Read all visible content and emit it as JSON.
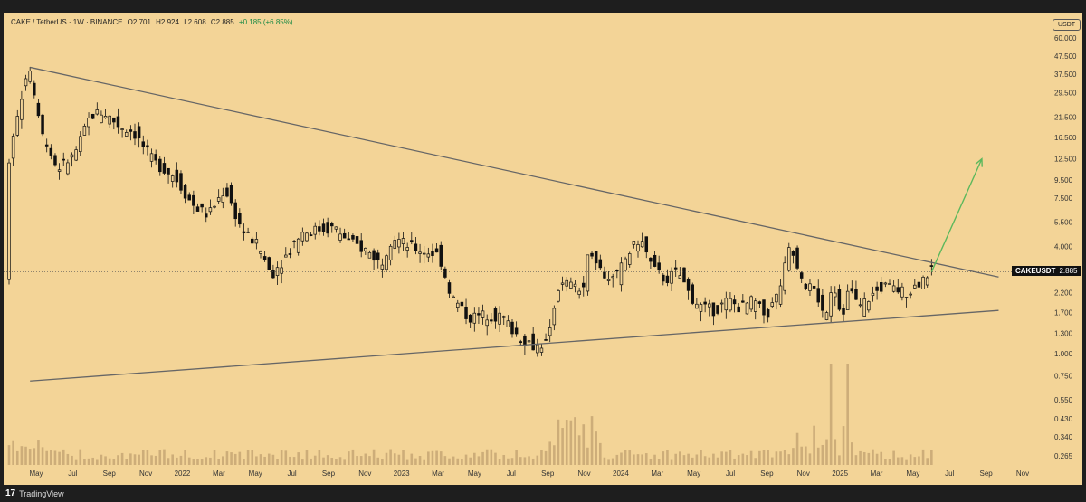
{
  "header": {
    "symbol": "CAKE / TetherUS · 1W · BINANCE",
    "open": "O2.701",
    "high": "H2.924",
    "low": "L2.608",
    "close": "C2.885",
    "change": "+0.185 (+6.85%)"
  },
  "currency_badge": "USDT",
  "price_label": {
    "ticker": "CAKEUSDT",
    "price": "2.885"
  },
  "footer": {
    "brand": "TradingView"
  },
  "colors": {
    "background": "#f3d497",
    "candle": "#111111",
    "trendline": "#666666",
    "arrow": "#5cb85c",
    "volume": "#c9a976"
  },
  "chart_data": {
    "type": "candlestick",
    "scale": "log",
    "y_ticks": [
      "60.000",
      "47.500",
      "37.500",
      "29.500",
      "21.500",
      "16.500",
      "12.500",
      "9.500",
      "7.500",
      "5.500",
      "4.000",
      "2.200",
      "1.700",
      "1.300",
      "1.000",
      "0.750",
      "0.550",
      "0.430",
      "0.340",
      "0.265"
    ],
    "x_ticks": [
      "May",
      "Jul",
      "Sep",
      "Nov",
      "2022",
      "Mar",
      "May",
      "Jul",
      "Sep",
      "Nov",
      "2023",
      "Mar",
      "May",
      "Jul",
      "Sep",
      "Nov",
      "2024",
      "Mar",
      "May",
      "Jul",
      "Sep",
      "Nov",
      "2025",
      "Mar",
      "May",
      "Jul",
      "Sep",
      "Nov"
    ],
    "current_price": 2.885,
    "price_path": [
      [
        0,
        10.5
      ],
      [
        2,
        20
      ],
      [
        5,
        42
      ],
      [
        8,
        18
      ],
      [
        12,
        11
      ],
      [
        16,
        13
      ],
      [
        20,
        22
      ],
      [
        23,
        23
      ],
      [
        27,
        19
      ],
      [
        30,
        18
      ],
      [
        35,
        12
      ],
      [
        40,
        10
      ],
      [
        44,
        7
      ],
      [
        48,
        6
      ],
      [
        52,
        8.5
      ],
      [
        56,
        5
      ],
      [
        60,
        4
      ],
      [
        63,
        2.8
      ],
      [
        66,
        3.4
      ],
      [
        70,
        4.8
      ],
      [
        74,
        5
      ],
      [
        78,
        5.1
      ],
      [
        82,
        4.2
      ],
      [
        86,
        3.8
      ],
      [
        89,
        3.2
      ],
      [
        92,
        4.6
      ],
      [
        96,
        4.0
      ],
      [
        99,
        3.8
      ],
      [
        103,
        3.6
      ],
      [
        106,
        2.1
      ],
      [
        110,
        1.6
      ],
      [
        114,
        1.65
      ],
      [
        118,
        1.6
      ],
      [
        122,
        1.25
      ],
      [
        126,
        1.1
      ],
      [
        129,
        1.15
      ],
      [
        131,
        2.3
      ],
      [
        134,
        2.5
      ],
      [
        137,
        2.2
      ],
      [
        139,
        4.0
      ],
      [
        142,
        2.8
      ],
      [
        145,
        2.6
      ],
      [
        148,
        3.6
      ],
      [
        151,
        4.5
      ],
      [
        154,
        3.0
      ],
      [
        157,
        2.6
      ],
      [
        160,
        2.9
      ],
      [
        163,
        2.1
      ],
      [
        166,
        1.8
      ],
      [
        169,
        1.75
      ],
      [
        172,
        2.0
      ],
      [
        175,
        1.8
      ],
      [
        178,
        2.0
      ],
      [
        181,
        1.6
      ],
      [
        184,
        2.2
      ],
      [
        187,
        4.2
      ],
      [
        190,
        2.5
      ],
      [
        193,
        2.2
      ],
      [
        195,
        1.6
      ],
      [
        197,
        2.6
      ],
      [
        199,
        1.6
      ],
      [
        201,
        2.4
      ],
      [
        203,
        1.8
      ],
      [
        206,
        2.1
      ],
      [
        209,
        2.4
      ],
      [
        212,
        2.3
      ],
      [
        215,
        2.2
      ],
      [
        218,
        2.6
      ],
      [
        220,
        2.885
      ]
    ],
    "trendlines": [
      {
        "name": "",
        "from": [
          5,
          41
        ],
        "to": [
          236,
          2.7
        ]
      },
      {
        "name": "",
        "from": [
          5,
          0.7
        ],
        "to": [
          236,
          1.75
        ]
      }
    ],
    "projection": {
      "from": [
        220,
        2.885
      ],
      "to": [
        232,
        12.5
      ]
    }
  }
}
